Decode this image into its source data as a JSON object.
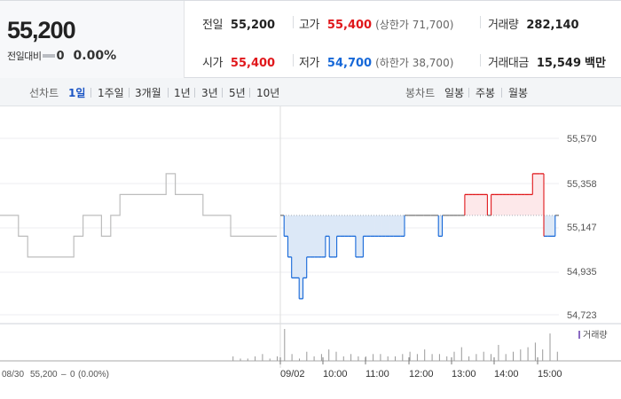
{
  "header": {
    "current_price": "55,200",
    "change_label": "전일대비",
    "change_value": "0",
    "change_rate": "0.00%",
    "info": {
      "prev_close": {
        "label": "전일",
        "value": "55,200"
      },
      "high": {
        "label": "고가",
        "value": "55,400",
        "sub": "(상한가 71,700)"
      },
      "volume": {
        "label": "거래량",
        "value": "282,140"
      },
      "open": {
        "label": "시가",
        "value": "55,400"
      },
      "low": {
        "label": "저가",
        "value": "54,700",
        "sub": "(하한가 38,700)"
      },
      "amount": {
        "label": "거래대금",
        "value": "15,549",
        "unit": "백만"
      }
    }
  },
  "period_bar": {
    "line_label": "선차트",
    "line_periods": [
      "1일",
      "1주일",
      "3개월",
      "1년",
      "3년",
      "5년",
      "10년"
    ],
    "active_period": "1일",
    "candle_label": "봉차트",
    "candle_periods": [
      "일봉",
      "주봉",
      "월봉"
    ]
  },
  "chart_data": {
    "type": "line",
    "title": "",
    "xlabel": "",
    "ylabel": "",
    "reference_price": 55200,
    "ylim": [
      54723,
      55570
    ],
    "y_ticks": [
      "55,570",
      "55,358",
      "55,147",
      "54,935",
      "54,723"
    ],
    "x_ticks": [
      "09/02",
      "10:00",
      "11:00",
      "12:00",
      "13:00",
      "14:00",
      "15:00"
    ],
    "colors": {
      "up": "#e0171b",
      "down": "#1668d8",
      "prev_day": "#bdbdbd",
      "up_fill": "#fde8ea",
      "down_fill": "#dce8f7"
    },
    "series": [
      {
        "values": [
          55200,
          55200,
          55100,
          55000,
          55000,
          55000,
          55000,
          55000,
          55100,
          55200,
          55200,
          55100,
          55200,
          55300,
          55300,
          55300,
          55300,
          55300,
          55400,
          55300,
          55300,
          55300,
          55200,
          55200,
          55200,
          55100,
          55100,
          55100,
          55100,
          55100
        ]
      },
      {
        "values": [
          55200,
          55100,
          55000,
          54900,
          54900,
          54800,
          54900,
          55000,
          55000,
          55000,
          55000,
          55000,
          55100,
          55000,
          55000,
          55100,
          55100,
          55100,
          55100,
          55100,
          55000,
          55000,
          55100,
          55100,
          55100,
          55100,
          55100,
          55100,
          55100,
          55100,
          55100,
          55100,
          55100,
          55200,
          55200,
          55200,
          55200,
          55200,
          55200,
          55200,
          55200,
          55200,
          55100,
          55200,
          55200,
          55200,
          55200,
          55200,
          55200,
          55300,
          55300,
          55300,
          55300,
          55300,
          55300,
          55200,
          55300,
          55300,
          55300,
          55300,
          55300,
          55300,
          55300,
          55300,
          55300,
          55300,
          55300,
          55400,
          55400,
          55400,
          55100,
          55100,
          55100,
          55200
        ]
      }
    ],
    "volume_label": "거래량",
    "volume_values": [
      2,
      1,
      1,
      2,
      3,
      1,
      2,
      14,
      3,
      1,
      4,
      2,
      3,
      5,
      4,
      2,
      3,
      2,
      2,
      3,
      3,
      2,
      2,
      3,
      4,
      3,
      5,
      3,
      3,
      2,
      4,
      6,
      2,
      3,
      4,
      3,
      7,
      3,
      4,
      5,
      6,
      8,
      5,
      12,
      4
    ]
  },
  "footer": {
    "date": "08/30",
    "price": "55,200",
    "change": "0",
    "rate": "(0.00%)"
  }
}
